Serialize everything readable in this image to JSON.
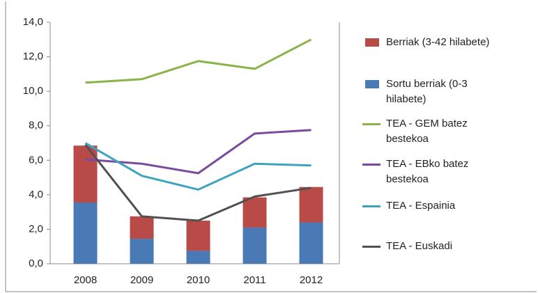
{
  "chart_data": {
    "type": "bar",
    "categories": [
      "2008",
      "2009",
      "2010",
      "2011",
      "2012"
    ],
    "series": [
      {
        "name": "Sortu berriak (0-3 hilabete)",
        "type": "bar",
        "color": "#4a7ab5",
        "values": [
          3.55,
          1.45,
          0.75,
          2.1,
          2.4
        ]
      },
      {
        "name": "Berriak (3-42 hilabete)",
        "type": "bar",
        "color": "#b84a48",
        "values": [
          3.3,
          1.3,
          1.75,
          1.75,
          2.05
        ]
      },
      {
        "name": "TEA - GEM batez bestekoa",
        "type": "line",
        "color": "#8ab34a",
        "values": [
          10.5,
          10.7,
          11.75,
          11.3,
          13.0
        ]
      },
      {
        "name": "TEA - EBko batez bestekoa",
        "type": "line",
        "color": "#7a4a9e",
        "values": [
          6.05,
          5.8,
          5.25,
          7.55,
          7.75
        ]
      },
      {
        "name": "TEA - Espainia",
        "type": "line",
        "color": "#3ea3bd",
        "values": [
          7.0,
          5.1,
          4.3,
          5.8,
          5.7
        ]
      },
      {
        "name": "TEA - Euskadi",
        "type": "line",
        "color": "#505050",
        "values": [
          6.9,
          2.75,
          2.5,
          3.9,
          4.4
        ]
      }
    ],
    "ylim": [
      0,
      14
    ],
    "yticks": [
      {
        "value": 0,
        "label": "0,0"
      },
      {
        "value": 2,
        "label": "2,0"
      },
      {
        "value": 4,
        "label": "4,0"
      },
      {
        "value": 6,
        "label": "6,0"
      },
      {
        "value": 8,
        "label": "8,0"
      },
      {
        "value": 10,
        "label": "10,0"
      },
      {
        "value": 12,
        "label": "12,0"
      },
      {
        "value": 14,
        "label": "14,0"
      }
    ],
    "grid": false
  }
}
